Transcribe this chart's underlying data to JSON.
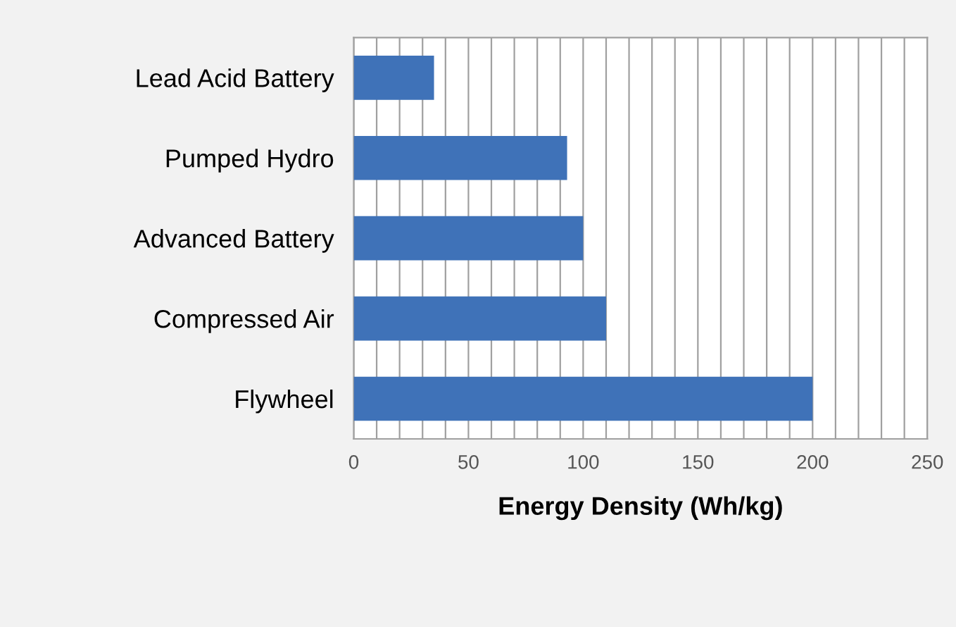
{
  "chart_data": {
    "type": "bar",
    "orientation": "horizontal",
    "xlabel": "Energy Density (Wh/kg)",
    "categories": [
      "Lead Acid Battery",
      "Pumped Hydro",
      "Advanced Battery",
      "Compressed Air",
      "Flywheel"
    ],
    "values": [
      35,
      93,
      100,
      110,
      200
    ],
    "color": "#3f72b8",
    "xlim": [
      0,
      250
    ],
    "xticks": [
      0,
      {
        "value": 10,
        "label": null
      },
      {
        "value": 20,
        "label": null
      },
      {
        "value": 30,
        "label": null
      },
      {
        "value": 40,
        "label": null
      },
      50,
      {
        "value": 60,
        "label": null
      },
      {
        "value": 70,
        "label": null
      },
      {
        "value": 80,
        "label": null
      },
      {
        "value": 90,
        "label": null
      },
      100,
      {
        "value": 110,
        "label": null
      },
      {
        "value": 120,
        "label": null
      },
      {
        "value": 130,
        "label": null
      },
      {
        "value": 140,
        "label": null
      },
      150,
      {
        "value": 160,
        "label": null
      },
      {
        "value": 170,
        "label": null
      },
      {
        "value": 180,
        "label": null
      },
      {
        "value": 190,
        "label": null
      },
      200,
      {
        "value": 210,
        "label": null
      },
      {
        "value": 220,
        "label": null
      },
      {
        "value": 230,
        "label": null
      },
      {
        "value": 240,
        "label": null
      },
      250
    ],
    "grid": "x"
  }
}
